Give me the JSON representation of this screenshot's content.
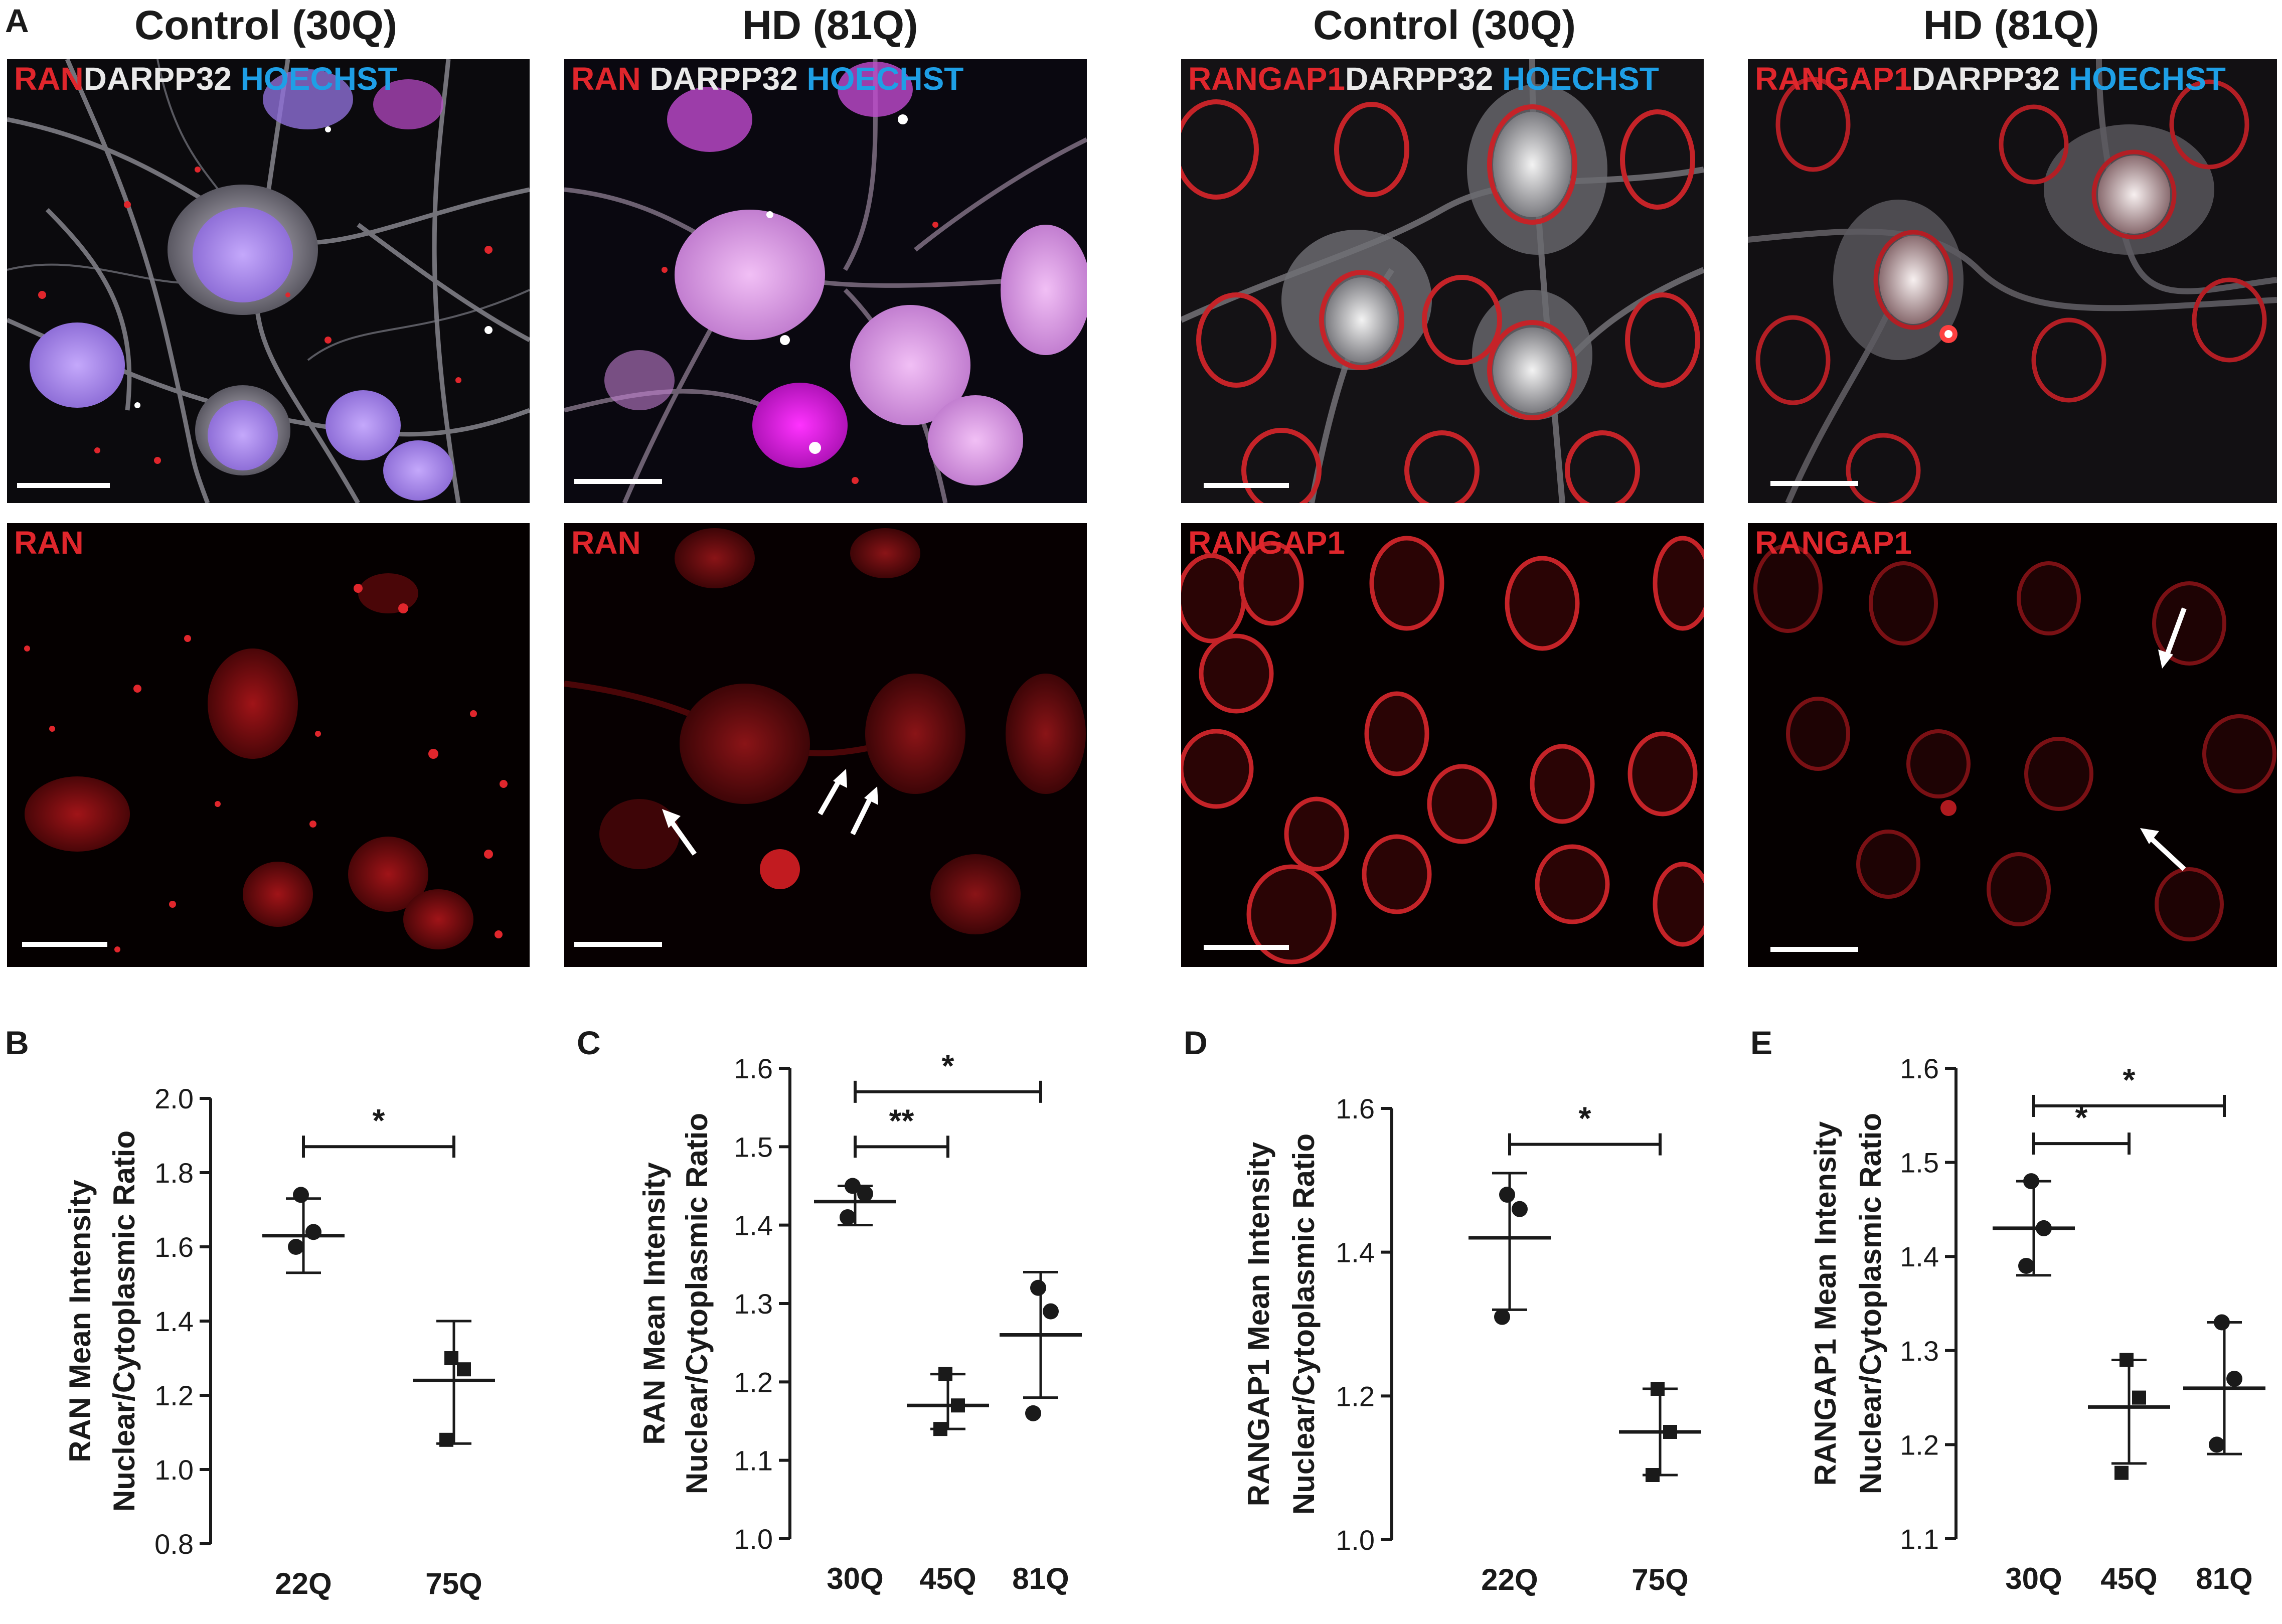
{
  "panel_a": {
    "letter": "A",
    "column_titles": [
      "Control (30Q)",
      "HD (81Q)",
      "Control (30Q)",
      "HD (81Q)"
    ],
    "top_row_labels": [
      [
        {
          "text": "RAN",
          "color": "#e0262c"
        },
        {
          "text": "DARPP32",
          "color": "#e9e9e9"
        },
        {
          "text": "HOECHST",
          "color": "#1e9fe6"
        }
      ],
      [
        {
          "text": "RAN",
          "color": "#e0262c"
        },
        {
          "text": "DARPP32",
          "color": "#e9e9e9"
        },
        {
          "text": "HOECHST",
          "color": "#1e9fe6"
        }
      ],
      [
        {
          "text": "RANGAP1",
          "color": "#e0262c"
        },
        {
          "text": "DARPP32",
          "color": "#e9e9e9"
        },
        {
          "text": "HOECHST",
          "color": "#1e9fe6"
        }
      ],
      [
        {
          "text": "RANGAP1",
          "color": "#e0262c"
        },
        {
          "text": "DARPP32",
          "color": "#e9e9e9"
        },
        {
          "text": "HOECHST",
          "color": "#1e9fe6"
        }
      ]
    ],
    "bottom_row_labels": [
      {
        "text": "RAN",
        "color": "#e0262c"
      },
      {
        "text": "RAN",
        "color": "#e0262c"
      },
      {
        "text": "RANGAP1",
        "color": "#e0262c"
      },
      {
        "text": "RANGAP1",
        "color": "#e0262c"
      }
    ],
    "colors": {
      "nucleus_merge": "#b79bf2",
      "neurite": "#9a9aa4",
      "red_signal": "#d4181d",
      "background": "#000000"
    }
  },
  "chart_data": [
    {
      "letter": "B",
      "type": "scatter",
      "ylabel": [
        "RAN Mean Intensity",
        "Nuclear/Cytoplasmic Ratio"
      ],
      "categories": [
        "22Q",
        "75Q"
      ],
      "ylim": [
        0.8,
        2.0
      ],
      "yticks": [
        "0.8",
        "1.0",
        "1.2",
        "1.4",
        "1.6",
        "1.8",
        "2.0"
      ],
      "series": [
        {
          "marker": "circle",
          "points": [
            1.74,
            1.64,
            1.6
          ],
          "mean": 1.63,
          "sd": [
            1.53,
            1.73
          ]
        },
        {
          "marker": "square",
          "points": [
            1.3,
            1.27,
            1.08
          ],
          "mean": 1.24,
          "sd": [
            1.07,
            1.4
          ]
        }
      ],
      "significance": [
        {
          "from": 0,
          "to": 1,
          "y": 1.87,
          "label": "*"
        }
      ]
    },
    {
      "letter": "C",
      "type": "scatter",
      "ylabel": [
        "RAN Mean Intensity",
        "Nuclear/Cytoplasmic Ratio"
      ],
      "categories": [
        "30Q",
        "45Q",
        "81Q"
      ],
      "ylim": [
        1.0,
        1.6
      ],
      "yticks": [
        "1.0",
        "1.1",
        "1.2",
        "1.3",
        "1.4",
        "1.5",
        "1.6"
      ],
      "series": [
        {
          "marker": "circle",
          "points": [
            1.45,
            1.44,
            1.41
          ],
          "mean": 1.43,
          "sd": [
            1.4,
            1.45
          ]
        },
        {
          "marker": "square",
          "points": [
            1.21,
            1.17,
            1.14
          ],
          "mean": 1.17,
          "sd": [
            1.14,
            1.21
          ]
        },
        {
          "marker": "circle",
          "points": [
            1.32,
            1.29,
            1.16
          ],
          "mean": 1.26,
          "sd": [
            1.18,
            1.34
          ]
        }
      ],
      "significance": [
        {
          "from": 0,
          "to": 1,
          "y": 1.5,
          "label": "**"
        },
        {
          "from": 0,
          "to": 2,
          "y": 1.57,
          "label": "*"
        }
      ]
    },
    {
      "letter": "D",
      "type": "scatter",
      "ylabel": [
        "RANGAP1 Mean Intensity",
        "Nuclear/Cytoplasmic Ratio"
      ],
      "categories": [
        "22Q",
        "75Q"
      ],
      "ylim": [
        1.0,
        1.6
      ],
      "yticks": [
        "1.0",
        "1.2",
        "1.4",
        "1.6"
      ],
      "series": [
        {
          "marker": "circle",
          "points": [
            1.48,
            1.46,
            1.31
          ],
          "mean": 1.42,
          "sd": [
            1.32,
            1.51
          ]
        },
        {
          "marker": "square",
          "points": [
            1.21,
            1.15,
            1.09
          ],
          "mean": 1.15,
          "sd": [
            1.09,
            1.21
          ]
        }
      ],
      "significance": [
        {
          "from": 0,
          "to": 1,
          "y": 1.55,
          "label": "*"
        }
      ]
    },
    {
      "letter": "E",
      "type": "scatter",
      "ylabel": [
        "RANGAP1 Mean Intensity",
        "Nuclear/Cytoplasmic Ratio"
      ],
      "categories": [
        "30Q",
        "45Q",
        "81Q"
      ],
      "ylim": [
        1.1,
        1.6
      ],
      "yticks": [
        "1.1",
        "1.2",
        "1.3",
        "1.4",
        "1.5",
        "1.6"
      ],
      "series": [
        {
          "marker": "circle",
          "points": [
            1.48,
            1.43,
            1.39
          ],
          "mean": 1.43,
          "sd": [
            1.38,
            1.48
          ]
        },
        {
          "marker": "square",
          "points": [
            1.29,
            1.25,
            1.17
          ],
          "mean": 1.24,
          "sd": [
            1.18,
            1.29
          ]
        },
        {
          "marker": "circle",
          "points": [
            1.33,
            1.27,
            1.2
          ],
          "mean": 1.26,
          "sd": [
            1.19,
            1.33
          ]
        }
      ],
      "significance": [
        {
          "from": 0,
          "to": 1,
          "y": 1.52,
          "label": "*"
        },
        {
          "from": 0,
          "to": 2,
          "y": 1.56,
          "label": "*"
        }
      ]
    }
  ]
}
